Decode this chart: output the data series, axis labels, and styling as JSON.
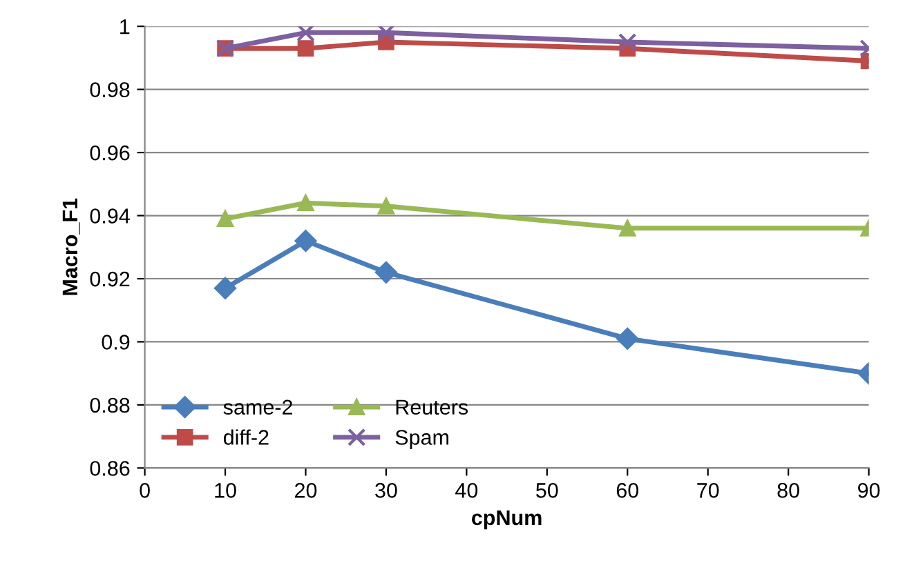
{
  "chart_data": {
    "type": "line",
    "xlabel": "cpNum",
    "ylabel": "Macro_F1",
    "x": [
      10,
      20,
      30,
      60,
      90
    ],
    "series": [
      {
        "name": "same-2",
        "color": "#4a7ebb",
        "marker": "diamond",
        "values": [
          0.917,
          0.932,
          0.922,
          0.901,
          0.89
        ]
      },
      {
        "name": "diff-2",
        "color": "#be4b48",
        "marker": "square",
        "values": [
          0.993,
          0.993,
          0.995,
          0.993,
          0.989
        ]
      },
      {
        "name": "Reuters",
        "color": "#98b954",
        "marker": "triangle",
        "values": [
          0.939,
          0.944,
          0.943,
          0.936,
          0.936
        ]
      },
      {
        "name": "Spam",
        "color": "#7d60a0",
        "marker": "cross",
        "values": [
          0.993,
          0.998,
          0.998,
          0.995,
          0.993
        ]
      }
    ],
    "xlim": [
      0,
      90
    ],
    "xticks": [
      0,
      10,
      20,
      30,
      40,
      50,
      60,
      70,
      80,
      90
    ],
    "ylim": [
      0.86,
      1
    ],
    "yticks": [
      0.86,
      0.88,
      0.9,
      0.92,
      0.94,
      0.96,
      0.98,
      1
    ],
    "grid": "y",
    "legend": "bottom left",
    "line_style": "solid"
  }
}
